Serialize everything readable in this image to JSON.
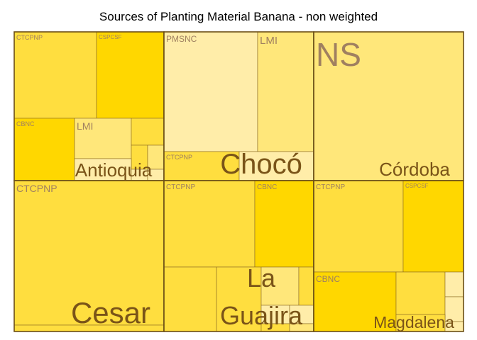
{
  "chart_data": {
    "type": "treemap",
    "title": "Sources of Planting Material Banana - non weighted",
    "colors": {
      "gold": "#FFD700",
      "mid": "#FFDE3F",
      "light": "#FFE77A",
      "pale": "#FFEDA9",
      "group_border": "#6B4E16",
      "cell_border": "#8A6A20",
      "group_label": "#7A5418",
      "cell_label": "#A08060"
    },
    "groups": [
      {
        "name": "Antioquia",
        "cells": [
          {
            "label": "CTCPNP",
            "shade": "mid"
          },
          {
            "label": "CSPCSF",
            "shade": "gold"
          },
          {
            "label": "CBNC",
            "shade": "gold"
          },
          {
            "label": "LMI",
            "shade": "light"
          },
          {
            "label": "",
            "shade": "mid"
          },
          {
            "label": "",
            "shade": "mid"
          },
          {
            "label": "",
            "shade": "light"
          },
          {
            "label": "",
            "shade": "pale"
          },
          {
            "label": "",
            "shade": "pale"
          },
          {
            "label": "",
            "shade": "pale"
          }
        ]
      },
      {
        "name": "Chocó",
        "cells": [
          {
            "label": "PMSNC",
            "shade": "pale"
          },
          {
            "label": "LMI",
            "shade": "light"
          },
          {
            "label": "CTCPNP",
            "shade": "mid"
          },
          {
            "label": "",
            "shade": "pale"
          }
        ]
      },
      {
        "name": "Córdoba",
        "cells": [
          {
            "label": "NS",
            "shade": "light"
          }
        ]
      },
      {
        "name": "Cesar",
        "cells": [
          {
            "label": "CTCPNP",
            "shade": "mid"
          },
          {
            "label": "",
            "shade": "mid"
          }
        ]
      },
      {
        "name": "La Guajira",
        "cells": [
          {
            "label": "CTCPNP",
            "shade": "mid"
          },
          {
            "label": "CBNC",
            "shade": "gold"
          },
          {
            "label": "",
            "shade": "mid"
          },
          {
            "label": "",
            "shade": "mid"
          },
          {
            "label": "",
            "shade": "light"
          },
          {
            "label": "",
            "shade": "mid"
          },
          {
            "label": "",
            "shade": "pale"
          },
          {
            "label": "",
            "shade": "pale"
          },
          {
            "label": "",
            "shade": "mid"
          },
          {
            "label": "",
            "shade": "light"
          }
        ]
      },
      {
        "name": "Magdalena",
        "cells": [
          {
            "label": "CTCPNP",
            "shade": "mid"
          },
          {
            "label": "CSPCSF",
            "shade": "gold"
          },
          {
            "label": "CBNC",
            "shade": "gold"
          },
          {
            "label": "",
            "shade": "mid"
          },
          {
            "label": "",
            "shade": "pale"
          },
          {
            "label": "",
            "shade": "pale"
          },
          {
            "label": "",
            "shade": "mid"
          },
          {
            "label": "",
            "shade": "pale"
          }
        ]
      }
    ]
  }
}
